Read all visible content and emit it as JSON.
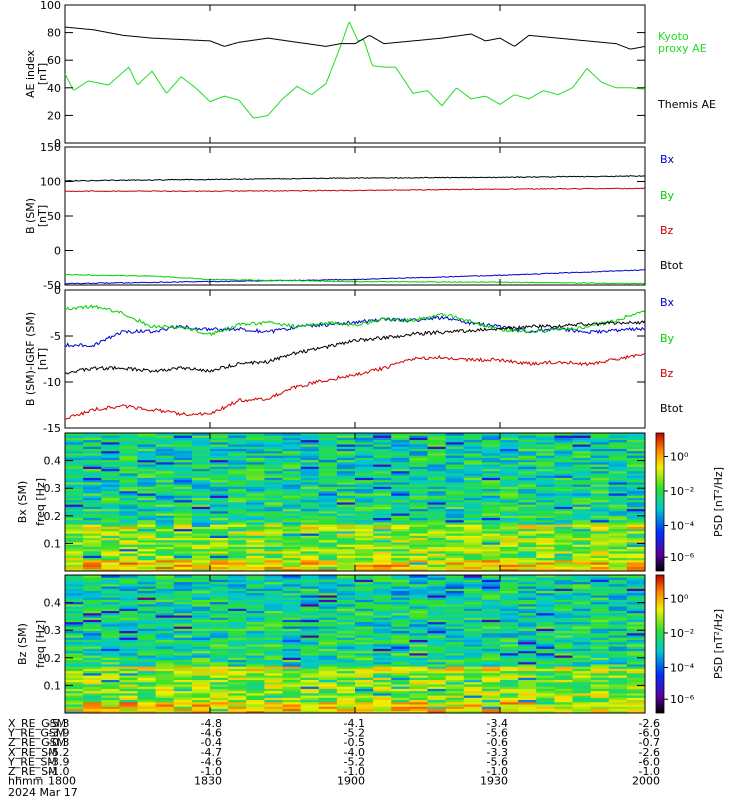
{
  "colors": {
    "bx": "#0000d0",
    "by": "#00d000",
    "bz": "#d00000",
    "btot": "#000000",
    "kyoto": "#22dd22",
    "themis": "#000000"
  },
  "panels": {
    "ae": {
      "ylabel_line1": "AE index",
      "ylabel_line2": "[nT]"
    },
    "b": {
      "ylabel_line1": "B (SM)",
      "ylabel_line2": "[nT]"
    },
    "db": {
      "ylabel_line1": "B (SM)-IGRF (SM)",
      "ylabel_line2": "[nT]"
    },
    "specx": {
      "ylabel_line1": "Bx (SM)",
      "ylabel_line2": "freq  [Hz]",
      "cbar_label": "PSD [nT²/Hz]"
    },
    "specz": {
      "ylabel_line1": "Bz (SM)",
      "ylabel_line2": "freq  [Hz]",
      "cbar_label": "PSD [nT²/Hz]"
    }
  },
  "ephemeris": {
    "row_labels": [
      "X_RE_GSM",
      "Y_RE_GSM",
      "Z_RE_GSM",
      "X_RE_SM",
      "Y_RE_SM",
      "Z_RE_SM",
      "hhmm"
    ],
    "date_label": "2024 Mar 17",
    "columns": [
      {
        "values": [
          "-5.3",
          "-3.9",
          "-0.3",
          "-5.2",
          "-3.9",
          "-1.0",
          "1800"
        ]
      },
      {
        "values": [
          "-4.8",
          "-4.6",
          "-0.4",
          "-4.7",
          "-4.6",
          "-1.0",
          "1830"
        ]
      },
      {
        "values": [
          "-4.1",
          "-5.2",
          "-0.5",
          "-4.0",
          "-5.2",
          "-1.0",
          "1900"
        ]
      },
      {
        "values": [
          "-3.4",
          "-5.6",
          "-0.6",
          "-3.3",
          "-5.6",
          "-1.0",
          "1930"
        ]
      },
      {
        "values": [
          "-2.6",
          "-6.0",
          "-0.7",
          "-2.6",
          "-6.0",
          "-1.0",
          "2000"
        ]
      }
    ]
  },
  "chart_data": [
    {
      "type": "line",
      "ylim": [
        0,
        100
      ],
      "yticks": [
        "0",
        "20",
        "40",
        "60",
        "80",
        "100"
      ],
      "xlim": [
        1800,
        2000
      ],
      "series": [
        {
          "name": "Kyoto\nproxy AE",
          "color": "#22dd22",
          "x": [
            1800,
            1803,
            1808,
            1815,
            1822,
            1825,
            1830,
            1835,
            1840,
            1845,
            1850,
            1855,
            1860,
            1865,
            1870,
            1875,
            1880,
            1885,
            1890,
            1895,
            1898,
            1901,
            1903,
            1906,
            1910,
            1914,
            1920,
            1925,
            1930,
            1935,
            1940,
            1945,
            1950,
            1955,
            1960,
            1965,
            1970,
            1975,
            1980,
            1985,
            1990,
            1995,
            2000
          ],
          "y": [
            50,
            38,
            45,
            42,
            55,
            42,
            52,
            36,
            48,
            40,
            30,
            34,
            31,
            18,
            20,
            32,
            41,
            35,
            43,
            70,
            88,
            74,
            75,
            56,
            55,
            55,
            36,
            38,
            27,
            40,
            32,
            34,
            28,
            35,
            32,
            38,
            35,
            40,
            54,
            44,
            40,
            40,
            39
          ]
        },
        {
          "name": "Themis AE",
          "color": "#000000",
          "x": [
            1800,
            1810,
            1820,
            1830,
            1840,
            1850,
            1855,
            1860,
            1870,
            1880,
            1890,
            1895,
            1900,
            1905,
            1910,
            1920,
            1930,
            1940,
            1945,
            1950,
            1955,
            1960,
            1970,
            1980,
            1990,
            1995,
            2000
          ],
          "y": [
            84,
            82,
            78,
            76,
            75,
            74,
            70,
            73,
            76,
            73,
            70,
            72,
            72,
            78,
            72,
            74,
            76,
            79,
            74,
            76,
            70,
            78,
            76,
            74,
            72,
            68,
            70
          ]
        }
      ]
    },
    {
      "type": "line",
      "ylim": [
        -50,
        150
      ],
      "yticks": [
        "-50",
        "0",
        "50",
        "100",
        "150"
      ],
      "xlim": [
        1800,
        2000
      ],
      "series": [
        {
          "name": "Bx",
          "color": "#0000d0",
          "x": [
            1800,
            1850,
            1900,
            1950,
            2000
          ],
          "y": [
            -48,
            -45,
            -42,
            -36,
            -28
          ]
        },
        {
          "name": "By",
          "color": "#00d000",
          "x": [
            1800,
            1830,
            1850,
            1900,
            1950,
            2000
          ],
          "y": [
            -35,
            -37,
            -42,
            -45,
            -46,
            -48
          ]
        },
        {
          "name": "Bz",
          "color": "#d00000",
          "x": [
            1800,
            1850,
            1900,
            1950,
            2000
          ],
          "y": [
            86,
            86,
            87,
            89,
            90
          ]
        },
        {
          "name": "Btot",
          "color": "#000000",
          "x": [
            1800,
            1850,
            1900,
            1950,
            2000
          ],
          "y": [
            101,
            103,
            105,
            106,
            108
          ]
        }
      ]
    },
    {
      "type": "line",
      "ylim": [
        -15,
        0
      ],
      "yticks": [
        "-15",
        "-10",
        "-5",
        "0"
      ],
      "xlim": [
        1800,
        2000
      ],
      "series": [
        {
          "name": "Bx",
          "color": "#0000d0",
          "x": [
            1800,
            1810,
            1820,
            1830,
            1840,
            1850,
            1860,
            1870,
            1880,
            1890,
            1900,
            1910,
            1920,
            1930,
            1940,
            1950,
            1960,
            1970,
            1980,
            1990,
            2000
          ],
          "y": [
            -6,
            -6,
            -4.5,
            -4.5,
            -4,
            -4.3,
            -4.2,
            -4.6,
            -4,
            -3.8,
            -3.5,
            -3.2,
            -3.3,
            -3.0,
            -3.6,
            -4.0,
            -4.5,
            -4.2,
            -4.6,
            -4.4,
            -4.2
          ]
        },
        {
          "name": "By",
          "color": "#00d000",
          "x": [
            1800,
            1810,
            1820,
            1830,
            1840,
            1850,
            1860,
            1870,
            1880,
            1890,
            1900,
            1910,
            1920,
            1930,
            1940,
            1950,
            1960,
            1970,
            1980,
            1990,
            2000
          ],
          "y": [
            -2,
            -1.8,
            -2.5,
            -4,
            -4,
            -4.8,
            -3.8,
            -3.5,
            -4,
            -3.6,
            -3.8,
            -3.2,
            -3.3,
            -2.6,
            -3.4,
            -4.3,
            -4.5,
            -4.4,
            -4.0,
            -3.3,
            -2.1
          ]
        },
        {
          "name": "Bz",
          "color": "#d00000",
          "x": [
            1800,
            1810,
            1820,
            1830,
            1840,
            1850,
            1860,
            1870,
            1880,
            1890,
            1900,
            1910,
            1920,
            1930,
            1940,
            1950,
            1960,
            1970,
            1980,
            1990,
            2000
          ],
          "y": [
            -14,
            -13,
            -12.6,
            -13,
            -13.5,
            -13.5,
            -12,
            -11.8,
            -10.5,
            -9.8,
            -9.2,
            -8.5,
            -7.5,
            -7.3,
            -7.6,
            -7.6,
            -8.0,
            -7.8,
            -8.1,
            -7.5,
            -7.0
          ]
        },
        {
          "name": "Btot",
          "color": "#000000",
          "x": [
            1800,
            1810,
            1820,
            1830,
            1840,
            1850,
            1860,
            1870,
            1880,
            1890,
            1900,
            1910,
            1920,
            1930,
            1940,
            1950,
            1960,
            1970,
            1980,
            1990,
            2000
          ],
          "y": [
            -9,
            -8.5,
            -8.5,
            -8.8,
            -8.5,
            -8.8,
            -8.0,
            -7.8,
            -6.8,
            -6.2,
            -5.5,
            -5.2,
            -4.8,
            -4.6,
            -4.4,
            -4.2,
            -4.0,
            -3.9,
            -3.7,
            -3.6,
            -3.5
          ]
        }
      ]
    },
    {
      "type": "heatmap",
      "xlim": [
        1800,
        2000
      ],
      "ylim": [
        0,
        0.5
      ],
      "yticks": [
        "0.1",
        "0.2",
        "0.3",
        "0.4"
      ],
      "cbar_ticks": [
        "10⁰",
        "10⁻²",
        "10⁻⁴",
        "10⁻⁶"
      ],
      "seed": 7
    },
    {
      "type": "heatmap",
      "xlim": [
        1800,
        2000
      ],
      "ylim": [
        0,
        0.5
      ],
      "yticks": [
        "0.1",
        "0.2",
        "0.3",
        "0.4"
      ],
      "cbar_ticks": [
        "10⁰",
        "10⁻²",
        "10⁻⁴",
        "10⁻⁶"
      ],
      "seed": 19
    }
  ]
}
